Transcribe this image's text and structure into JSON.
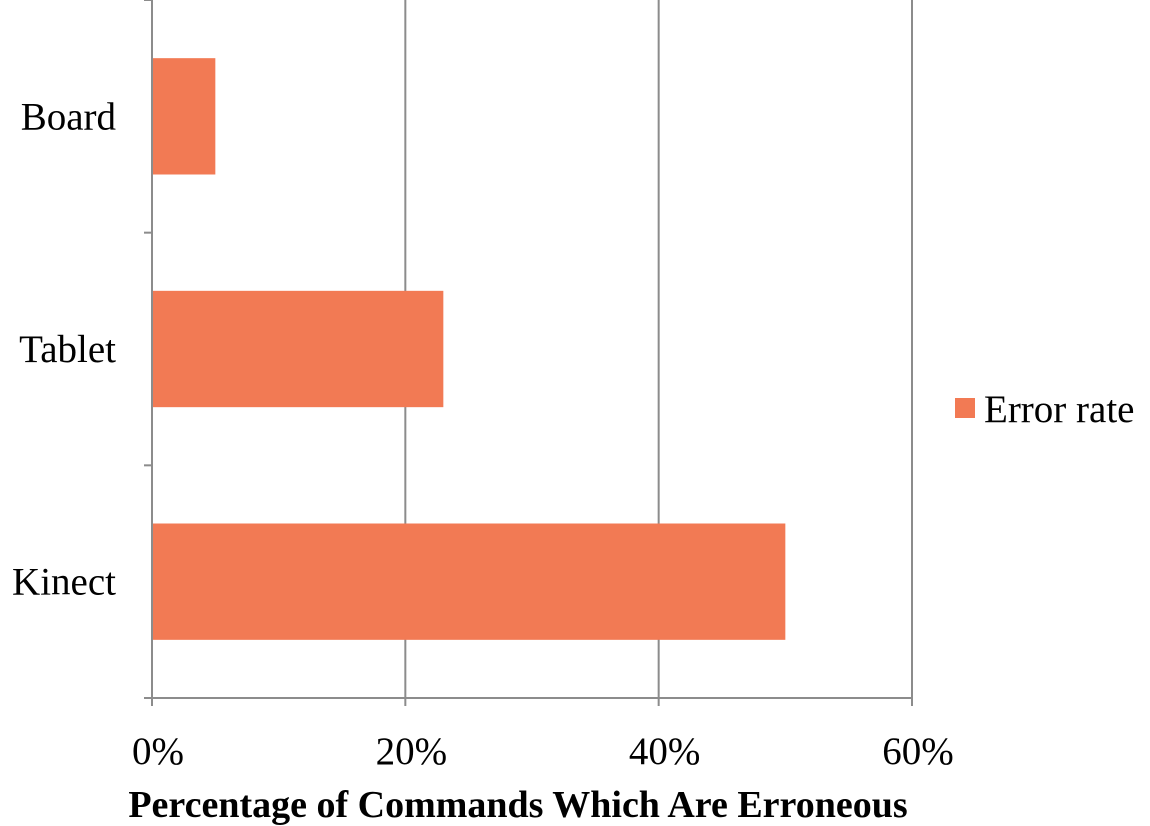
{
  "chart_data": {
    "type": "bar",
    "orientation": "horizontal",
    "categories": [
      "Board",
      "Tablet",
      "Kinect"
    ],
    "series": [
      {
        "name": "Error rate",
        "values": [
          5,
          23,
          50
        ],
        "color": "#F27A54"
      }
    ],
    "xlabel": "Percentage of Commands Which Are Erroneous",
    "ylabel": "",
    "xlim": [
      0,
      60
    ],
    "xticks": [
      "0%",
      "20%",
      "40%",
      "60%"
    ],
    "grid": true,
    "legend": "right"
  }
}
